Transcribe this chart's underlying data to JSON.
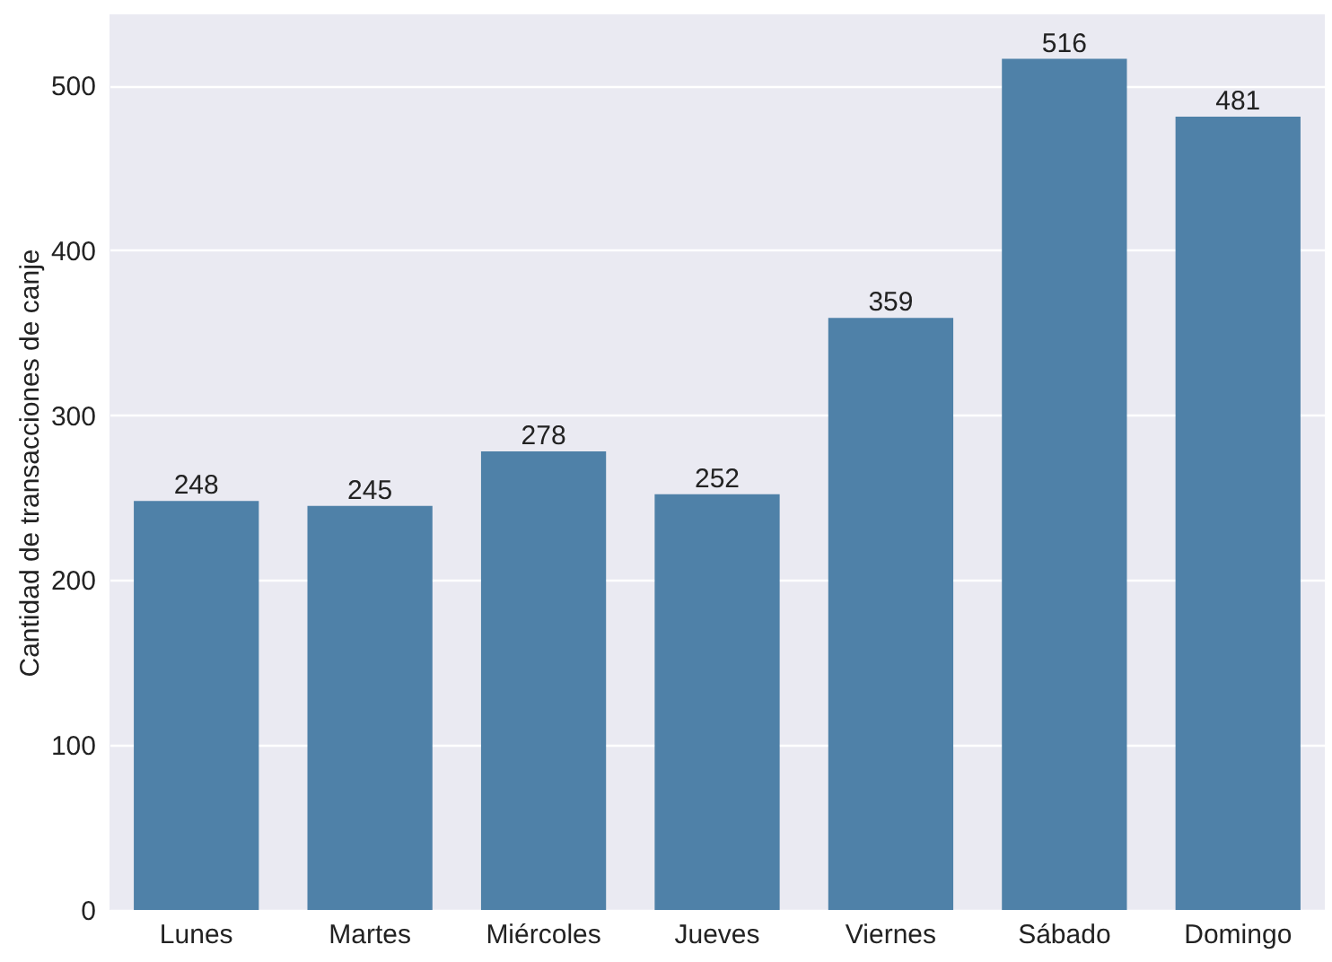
{
  "chart_data": {
    "type": "bar",
    "ylabel": "Cantidad de transacciones de canje",
    "categories": [
      "Lunes",
      "Martes",
      "Miércoles",
      "Jueves",
      "Viernes",
      "Sábado",
      "Domingo"
    ],
    "values": [
      248,
      245,
      278,
      252,
      359,
      516,
      481
    ],
    "color": "#4f81a8",
    "ylim": [
      0,
      543
    ],
    "yticks": [
      0,
      100,
      200,
      300,
      400,
      500
    ],
    "grid": "y",
    "data_labels": true
  }
}
